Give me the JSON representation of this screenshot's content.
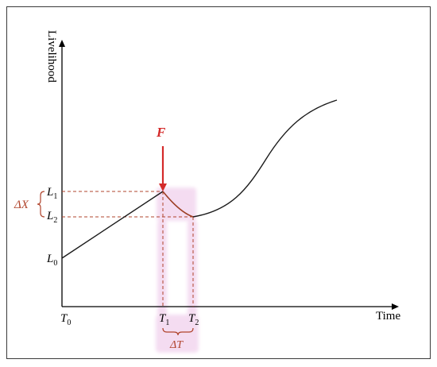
{
  "labels": {
    "y_axis": "Livelihood",
    "x_axis": "Time",
    "force": "F",
    "delta_x": "ΔX",
    "delta_t": "ΔT",
    "l0_base": "L",
    "l0_sub": "0",
    "l1_base": "L",
    "l1_sub": "1",
    "l2_base": "L",
    "l2_sub": "2",
    "t0_base": "T",
    "t0_sub": "0",
    "t1_base": "T",
    "t1_sub": "1",
    "t2_base": "T",
    "t2_sub": "2"
  },
  "colors": {
    "curve": "#1a1a1a",
    "axes": "#000000",
    "guide_lines": "#b0442c",
    "force_arrow": "#d42a2a",
    "shock_segment": "#9c3d22",
    "highlight": "#f3d7ef",
    "frame": "#3a3a3a"
  }
}
